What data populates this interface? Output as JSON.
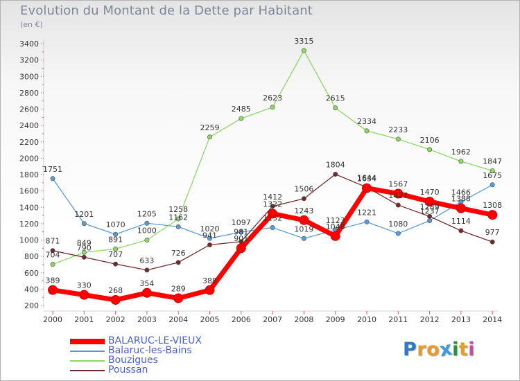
{
  "header": {
    "title": "Evolution du Montant de la Dette par Habitant",
    "subtitle": "(en €)"
  },
  "logo": {
    "letters": [
      "P",
      "r",
      "o",
      "x",
      "i",
      "t",
      "i"
    ],
    "colors": [
      "#2f79c4",
      "#e89a2a",
      "#e89a2a",
      "#3f9ad6",
      "#2b8f3e",
      "#e0a02a",
      "#c64ca0"
    ]
  },
  "chart_data": {
    "type": "line",
    "title": "Evolution du Montant de la Dette par Habitant",
    "ylabel": "(en €)",
    "xlabel": "",
    "x": [
      "2000",
      "2001",
      "2002",
      "2003",
      "2004",
      "2005",
      "2006",
      "2007",
      "2008",
      "2009",
      "2010",
      "2011",
      "2012",
      "2013",
      "2014"
    ],
    "ylim": [
      200,
      3400
    ],
    "yticks": [
      200,
      400,
      600,
      800,
      1000,
      1200,
      1400,
      1600,
      1800,
      2000,
      2200,
      2400,
      2600,
      2800,
      3000,
      3200,
      3400
    ],
    "grid": false,
    "legend_position": "bottom-left",
    "series": [
      {
        "name": "BALARUC-LE-VIEUX",
        "color": "#ff0000",
        "width": "thick",
        "values": [
          389,
          330,
          268,
          354,
          289,
          388,
          901,
          1322,
          1243,
          1048,
          1634,
          1567,
          1470,
          1388,
          1308
        ]
      },
      {
        "name": "Balaruc-les-Bains",
        "color": "#5b9bd5",
        "width": "thin",
        "values": [
          1751,
          1201,
          1070,
          1205,
          1162,
          1020,
          1097,
          1152,
          1019,
          1123,
          1221,
          1080,
          1237,
          1466,
          1675
        ]
      },
      {
        "name": "Bouzigues",
        "color": "#8ed666",
        "width": "thin",
        "values": [
          704,
          849,
          891,
          1000,
          1258,
          2259,
          2485,
          2623,
          3315,
          2615,
          2334,
          2233,
          2106,
          1962,
          1847
        ]
      },
      {
        "name": "Poussan",
        "color": "#722b2b",
        "width": "thin",
        "values": [
          871,
          790,
          707,
          633,
          726,
          941,
          981,
          1412,
          1506,
          1804,
          1644,
          1427,
          1289,
          1114,
          977
        ]
      }
    ]
  }
}
